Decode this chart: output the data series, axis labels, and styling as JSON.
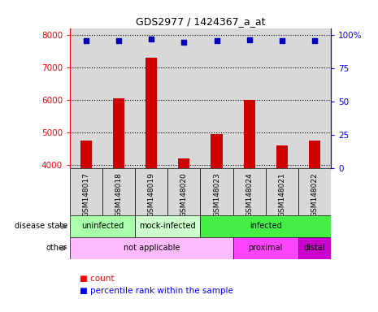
{
  "title": "GDS2977 / 1424367_a_at",
  "samples": [
    "GSM148017",
    "GSM148018",
    "GSM148019",
    "GSM148020",
    "GSM148023",
    "GSM148024",
    "GSM148021",
    "GSM148022"
  ],
  "bar_values": [
    4750,
    6050,
    7300,
    4200,
    4950,
    6000,
    4600,
    4750
  ],
  "percentile_values": [
    95.5,
    95.5,
    97,
    94.5,
    95.5,
    96.5,
    95.5,
    95.5
  ],
  "ylim_left": [
    3900,
    8200
  ],
  "ylim_right": [
    0,
    105
  ],
  "yticks_left": [
    4000,
    5000,
    6000,
    7000,
    8000
  ],
  "yticks_right": [
    0,
    25,
    50,
    75,
    100
  ],
  "bar_color": "#cc0000",
  "dot_color": "#0000bb",
  "bar_width": 0.35,
  "disease_info": [
    {
      "label": "uninfected",
      "start": 0,
      "end": 2,
      "color": "#aaffaa"
    },
    {
      "label": "mock-infected",
      "start": 2,
      "end": 4,
      "color": "#ccffcc"
    },
    {
      "label": "infected",
      "start": 4,
      "end": 8,
      "color": "#44ee44"
    }
  ],
  "other_info": [
    {
      "label": "not applicable",
      "start": 0,
      "end": 5,
      "color": "#ffbbff"
    },
    {
      "label": "proximal",
      "start": 5,
      "end": 7,
      "color": "#ff44ff"
    },
    {
      "label": "distal",
      "start": 7,
      "end": 8,
      "color": "#cc00cc"
    }
  ],
  "label_row1": "disease state",
  "label_row2": "other",
  "legend_count": "count",
  "legend_percentile": "percentile rank within the sample",
  "bg_color": "#d8d8d8",
  "plot_bg": "#ffffff"
}
